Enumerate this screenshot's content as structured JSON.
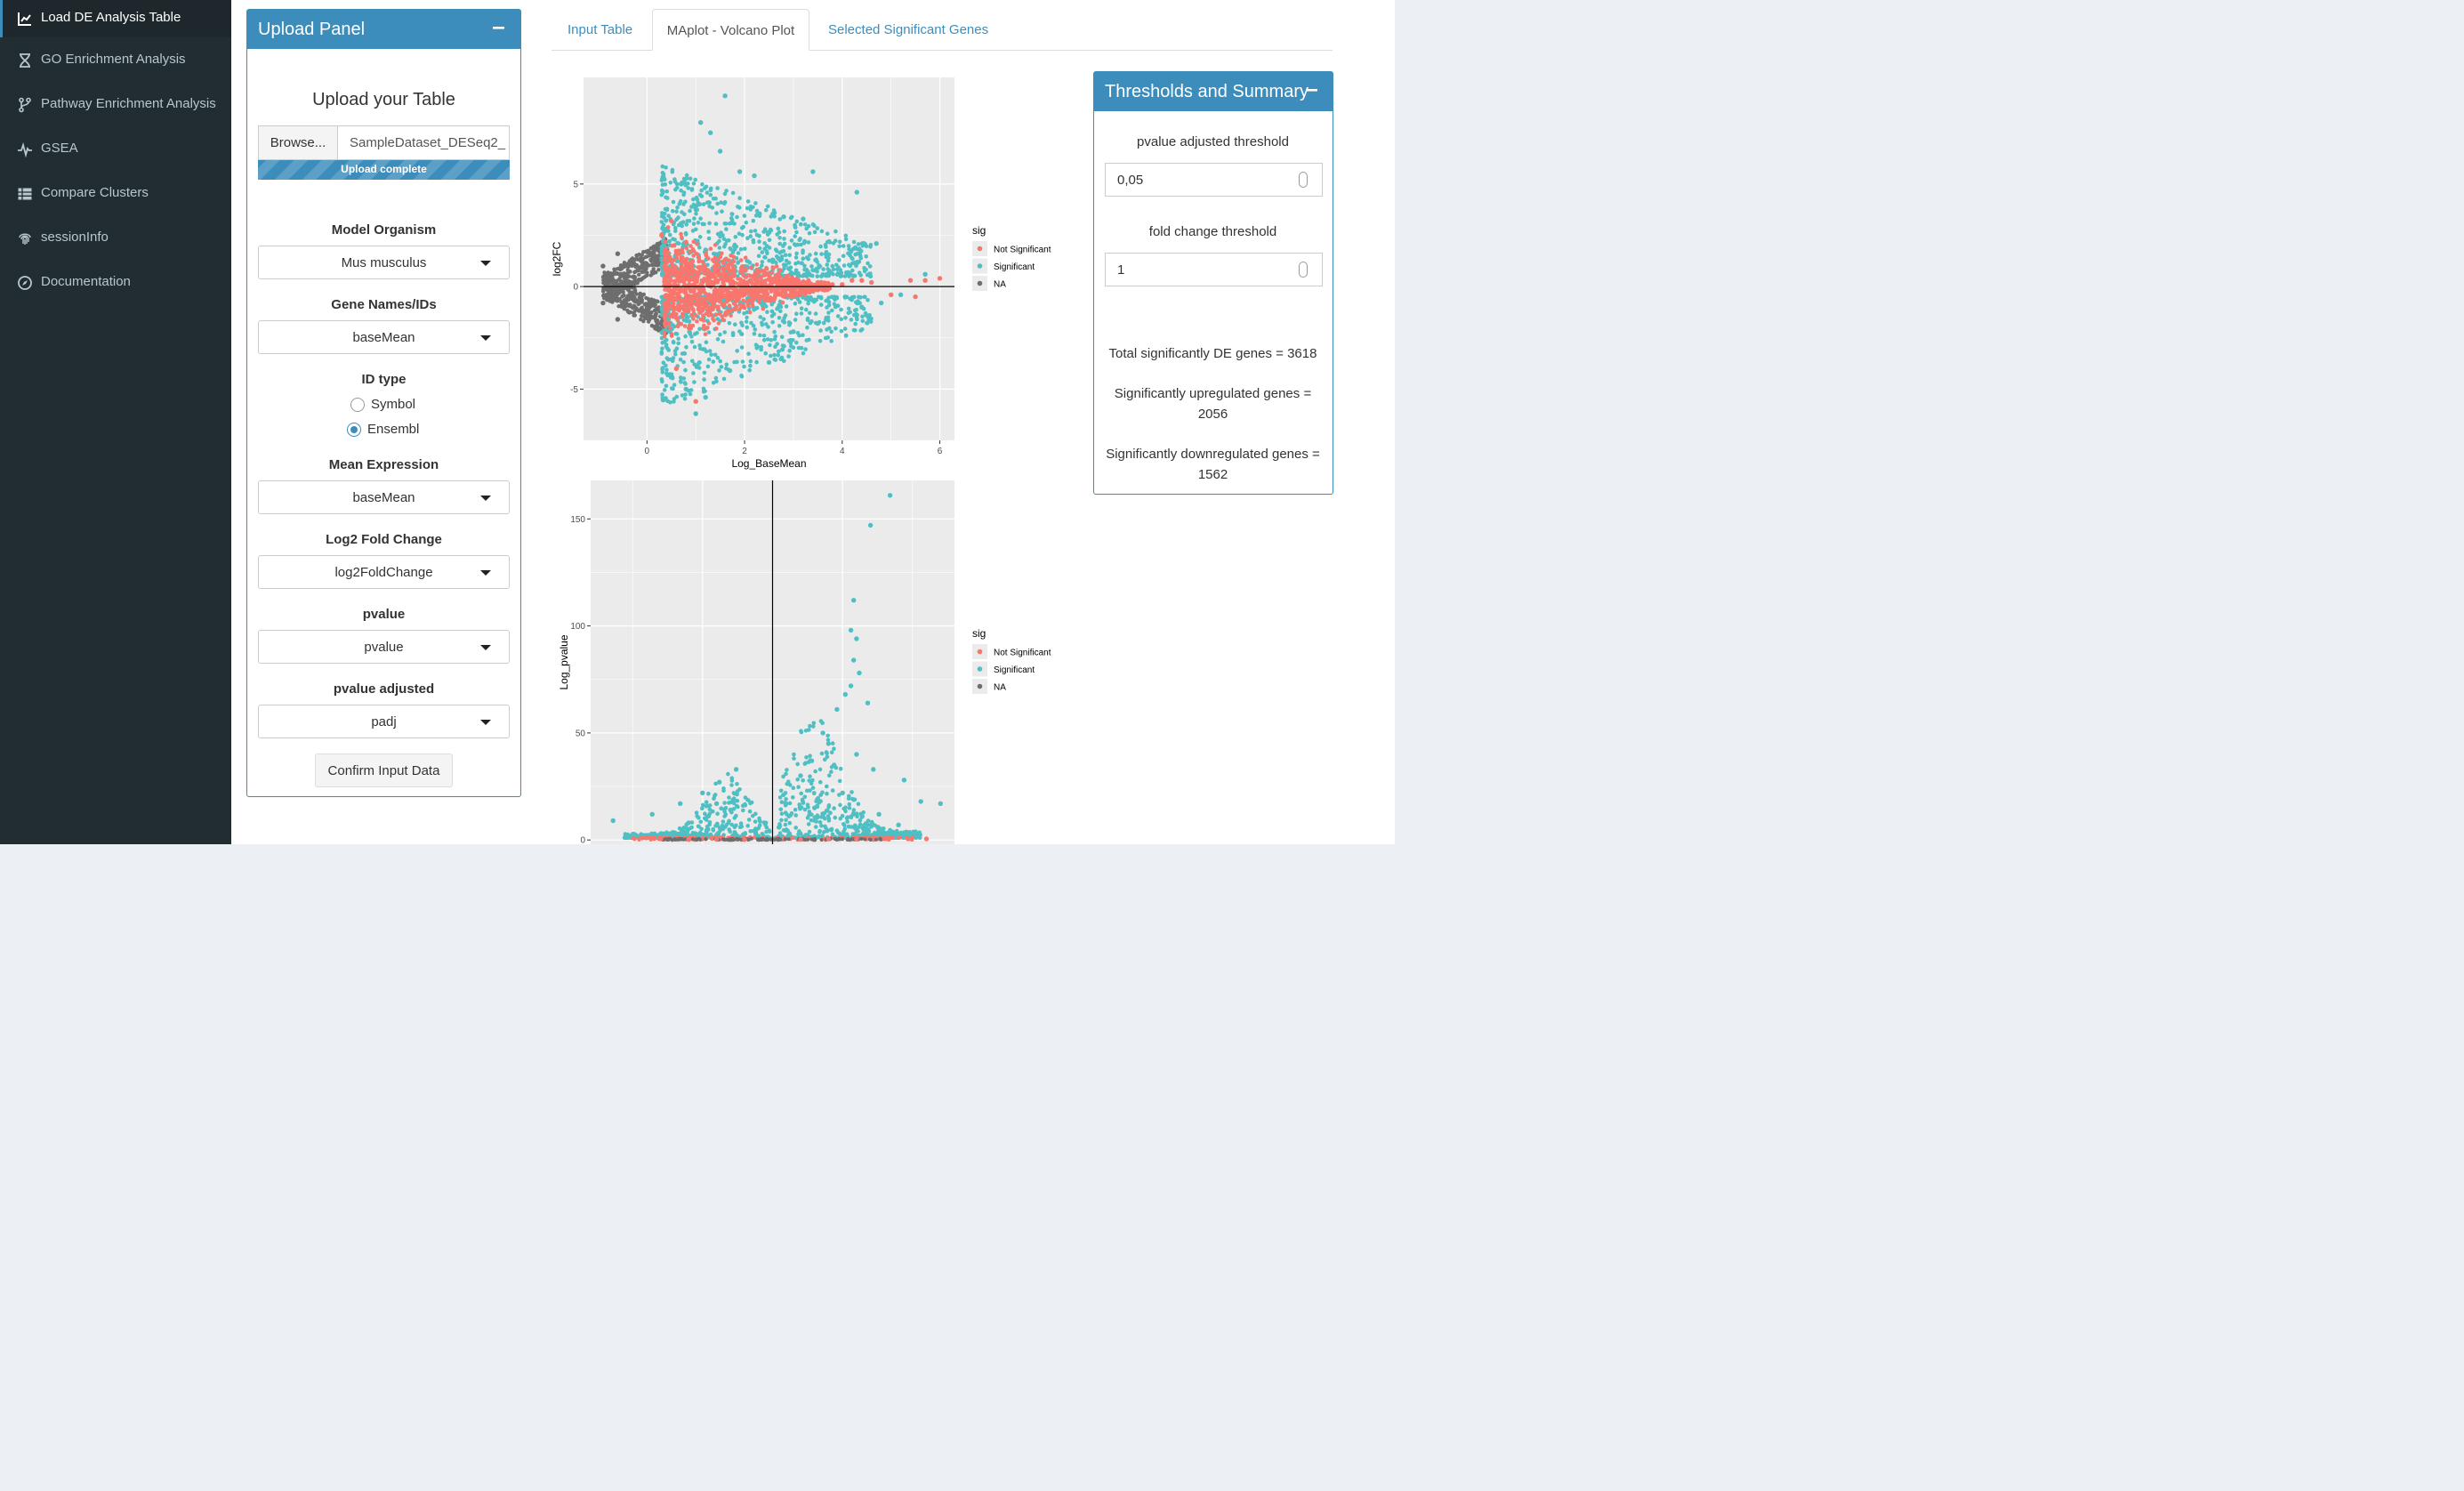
{
  "sidebar": {
    "items": [
      {
        "label": "Load DE Analysis Table",
        "icon": "line-chart-icon",
        "active": true
      },
      {
        "label": "GO Enrichment Analysis",
        "icon": "hourglass-icon",
        "active": false
      },
      {
        "label": "Pathway Enrichment Analysis",
        "icon": "code-fork-icon",
        "active": false
      },
      {
        "label": "GSEA",
        "icon": "heartbeat-icon",
        "active": false
      },
      {
        "label": "Compare Clusters",
        "icon": "table-icon",
        "active": false
      },
      {
        "label": "sessionInfo",
        "icon": "fingerprint-icon",
        "active": false
      },
      {
        "label": "Documentation",
        "icon": "compass-icon",
        "active": false
      }
    ]
  },
  "upload_panel": {
    "title": "Upload Panel",
    "upload_heading": "Upload your Table",
    "browse_label": "Browse...",
    "file_name": "SampleDataset_DESeq2_",
    "progress_text": "Upload complete",
    "progress_fraction": 1.0,
    "fields": {
      "model_organism": {
        "label": "Model Organism",
        "value": "Mus musculus"
      },
      "gene_names": {
        "label": "Gene Names/IDs",
        "value": "baseMean"
      },
      "mean_expression": {
        "label": "Mean Expression",
        "value": "baseMean"
      },
      "log2_fold_change": {
        "label": "Log2 Fold Change",
        "value": "log2FoldChange"
      },
      "pvalue": {
        "label": "pvalue",
        "value": "pvalue"
      },
      "pvalue_adjusted": {
        "label": "pvalue adjusted",
        "value": "padj"
      }
    },
    "id_type": {
      "label": "ID type",
      "options": [
        {
          "label": "Symbol",
          "selected": false
        },
        {
          "label": "Ensembl",
          "selected": true
        }
      ]
    },
    "confirm_label": "Confirm Input Data"
  },
  "tabs": [
    {
      "label": "Input Table",
      "active": false
    },
    {
      "label": "MAplot - Volcano Plot",
      "active": true
    },
    {
      "label": "Selected Significant Genes",
      "active": false
    }
  ],
  "thresholds": {
    "title": "Thresholds and Summary",
    "pvalue_label": "pvalue adjusted threshold",
    "pvalue_value": "0,05",
    "fc_label": "fold change threshold",
    "fc_value": "1",
    "total_text": "Total significantly DE genes = 3618",
    "up_text_1": "Significantly upregulated genes =",
    "up_text_2": "2056",
    "down_text_1": "Significantly downregulated genes =",
    "down_text_2": "1562"
  },
  "colors": {
    "accent": "#3c8dbc",
    "sidebar_bg": "#222d32",
    "not_significant": "#F8766D",
    "significant": "#4FBFC3",
    "na": "#6E6E6E",
    "plot_bg": "#EBEBEB"
  },
  "chart_data": [
    {
      "type": "scatter",
      "title": "",
      "xlabel": "Log_BaseMean",
      "ylabel": "log2FC",
      "xlim": [
        -1.3,
        6.3
      ],
      "ylim": [
        -7.5,
        10.2
      ],
      "x_ticks": [
        "0",
        "2",
        "4",
        "6"
      ],
      "x_tick_values": [
        0,
        2,
        4,
        6
      ],
      "y_ticks": [
        "-5",
        "0",
        "5"
      ],
      "y_tick_values": [
        -5,
        0,
        5
      ],
      "hline": 0,
      "legend": {
        "title": "sig",
        "position": "right",
        "entries": [
          "Not Significant",
          "Significant",
          "NA"
        ]
      },
      "series": [
        {
          "name": "Not Significant",
          "points": [
            [
              0.3,
              2.5
            ],
            [
              0.5,
              3.2
            ],
            [
              0.6,
              -4.0
            ],
            [
              1.0,
              -5.6
            ],
            [
              3.5,
              0.2
            ],
            [
              4.0,
              0.1
            ],
            [
              4.2,
              0.3
            ],
            [
              4.4,
              0.3
            ],
            [
              4.6,
              0.2
            ],
            [
              5.0,
              -0.4
            ],
            [
              5.4,
              0.3
            ],
            [
              5.7,
              0.3
            ],
            [
              6.0,
              0.4
            ],
            [
              5.5,
              -0.5
            ],
            [
              3.8,
              0.1
            ]
          ]
        },
        {
          "name": "Significant",
          "points": [
            [
              0.7,
              5.0
            ],
            [
              1.1,
              8.0
            ],
            [
              1.3,
              7.5
            ],
            [
              1.5,
              6.6
            ],
            [
              1.6,
              9.3
            ],
            [
              1.9,
              5.6
            ],
            [
              2.2,
              5.4
            ],
            [
              2.8,
              3.4
            ],
            [
              3.2,
              3.3
            ],
            [
              3.4,
              5.6
            ],
            [
              4.3,
              4.6
            ],
            [
              4.7,
              2.1
            ],
            [
              4.4,
              -1.0
            ],
            [
              3.5,
              -1.8
            ],
            [
              1.2,
              -5.4
            ],
            [
              0.8,
              -5.0
            ],
            [
              1.7,
              -4.1
            ],
            [
              1.0,
              -6.2
            ],
            [
              5.2,
              -0.4
            ],
            [
              5.7,
              0.6
            ],
            [
              4.8,
              -0.8
            ],
            [
              2.5,
              -3.7
            ],
            [
              3.0,
              -2.2
            ]
          ]
        },
        {
          "name": "NA",
          "points": [
            [
              -0.9,
              1.0
            ],
            [
              -0.6,
              1.6
            ],
            [
              -0.9,
              -0.8
            ],
            [
              -0.6,
              -1.6
            ]
          ]
        }
      ]
    },
    {
      "type": "scatter",
      "title": "",
      "xlabel": "",
      "ylabel": "Log_pvalue",
      "xlim": [
        -6.5,
        6.5
      ],
      "ylim": [
        -2,
        168
      ],
      "y_ticks": [
        "0",
        "50",
        "100",
        "150"
      ],
      "y_tick_values": [
        0,
        50,
        100,
        150
      ],
      "vline": 0,
      "legend": {
        "title": "sig",
        "position": "right",
        "entries": [
          "Not Significant",
          "Significant",
          "NA"
        ]
      },
      "series": [
        {
          "name": "Not Significant",
          "points": [
            [
              -4.5,
              1
            ],
            [
              -4.0,
              0.5
            ],
            [
              -3.0,
              0.3
            ],
            [
              -2.0,
              0.4
            ],
            [
              -1.0,
              0.2
            ],
            [
              1.0,
              0.3
            ],
            [
              2.0,
              0.5
            ],
            [
              3.0,
              0.4
            ],
            [
              4.0,
              0.6
            ],
            [
              5.5,
              0.5
            ]
          ]
        },
        {
          "name": "Significant",
          "points": [
            [
              4.2,
              161
            ],
            [
              3.5,
              147
            ],
            [
              2.9,
              112
            ],
            [
              2.8,
              98
            ],
            [
              3.0,
              94
            ],
            [
              2.9,
              84
            ],
            [
              3.1,
              78
            ],
            [
              2.8,
              72
            ],
            [
              2.6,
              68
            ],
            [
              2.3,
              61
            ],
            [
              3.4,
              64
            ],
            [
              1.8,
              50
            ],
            [
              2.0,
              45
            ],
            [
              3.0,
              40
            ],
            [
              2.2,
              35
            ],
            [
              1.4,
              37
            ],
            [
              1.0,
              30
            ],
            [
              3.6,
              33
            ],
            [
              4.7,
              28
            ],
            [
              5.3,
              18
            ],
            [
              6.0,
              17
            ],
            [
              -1.3,
              33
            ],
            [
              -1.9,
              27
            ],
            [
              -2.5,
              22
            ],
            [
              -3.3,
              17
            ],
            [
              -4.3,
              12
            ],
            [
              -5.7,
              9
            ],
            [
              -2.0,
              17
            ],
            [
              -1.5,
              14
            ],
            [
              -3.0,
              8
            ],
            [
              -0.6,
              3
            ],
            [
              0.6,
              3
            ],
            [
              1.5,
              15
            ],
            [
              2.5,
              22
            ],
            [
              3.8,
              12
            ],
            [
              4.5,
              7
            ]
          ]
        },
        {
          "name": "NA",
          "points": [
            [
              -0.2,
              0.3
            ],
            [
              0.2,
              0.3
            ],
            [
              -1.5,
              0.2
            ],
            [
              1.5,
              0.2
            ]
          ]
        }
      ]
    }
  ]
}
